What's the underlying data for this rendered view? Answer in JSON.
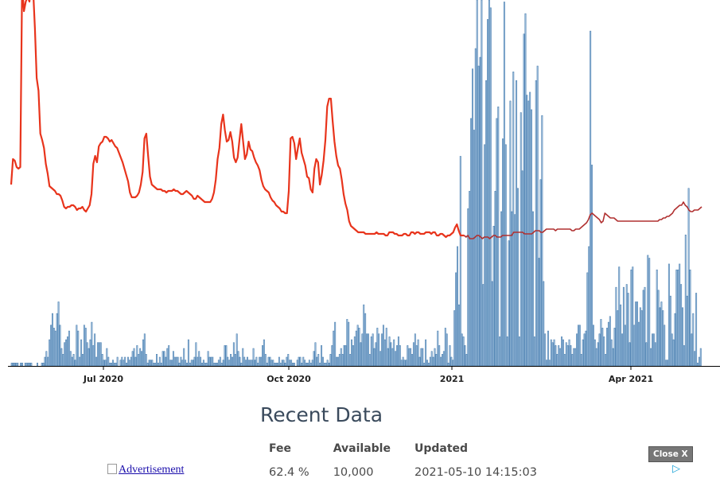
{
  "chart_data": {
    "type": "bar+line",
    "title": "",
    "xlabel": "",
    "ylabel": "",
    "x_tick_labels": [
      "Jul 2020",
      "Oct 2020",
      "2021",
      "Apr 2021"
    ],
    "grid": false,
    "legend": "none",
    "colors": {
      "bars": "#4a7fb0",
      "bar_fill": "#a9c6e2",
      "line": "#e8341c",
      "line_dark": "#b03030"
    },
    "series": [
      {
        "type": "bar",
        "values": [
          1,
          1,
          1,
          1,
          1,
          0,
          1,
          1,
          0,
          1,
          1,
          1,
          1,
          1,
          0,
          0,
          0,
          1,
          0,
          0,
          1,
          1,
          3,
          5,
          3,
          9,
          14,
          18,
          13,
          12,
          18,
          22,
          14,
          6,
          4,
          8,
          9,
          10,
          12,
          5,
          3,
          4,
          2,
          14,
          12,
          3,
          9,
          4,
          14,
          13,
          8,
          6,
          9,
          15,
          7,
          11,
          3,
          8,
          8,
          8,
          4,
          2,
          2,
          6,
          3,
          1,
          1,
          2,
          1,
          1,
          3,
          0,
          2,
          3,
          2,
          3,
          1,
          3,
          2,
          3,
          5,
          6,
          3,
          7,
          4,
          6,
          5,
          9,
          11,
          4,
          1,
          2,
          2,
          2,
          1,
          1,
          4,
          1,
          3,
          1,
          5,
          5,
          3,
          6,
          7,
          2,
          2,
          5,
          3,
          3,
          3,
          1,
          3,
          2,
          6,
          2,
          1,
          9,
          1,
          2,
          2,
          3,
          8,
          3,
          5,
          3,
          1,
          2,
          1,
          1,
          5,
          3,
          3,
          3,
          1,
          1,
          1,
          2,
          3,
          1,
          2,
          7,
          7,
          3,
          2,
          4,
          3,
          8,
          4,
          11,
          5,
          3,
          1,
          6,
          3,
          2,
          3,
          2,
          2,
          2,
          6,
          2,
          3,
          1,
          3,
          3,
          7,
          9,
          4,
          1,
          3,
          3,
          2,
          2,
          1,
          1,
          1,
          3,
          1,
          2,
          2,
          1,
          3,
          4,
          2,
          2,
          1,
          1,
          0,
          2,
          3,
          3,
          1,
          3,
          2,
          1,
          1,
          2,
          1,
          2,
          5,
          8,
          3,
          4,
          1,
          7,
          3,
          1,
          1,
          2,
          1,
          4,
          7,
          12,
          15,
          3,
          3,
          4,
          6,
          4,
          7,
          7,
          16,
          15,
          4,
          9,
          7,
          10,
          12,
          14,
          13,
          8,
          11,
          21,
          18,
          11,
          11,
          4,
          10,
          11,
          6,
          8,
          13,
          11,
          5,
          11,
          14,
          9,
          13,
          6,
          10,
          8,
          6,
          9,
          5,
          7,
          10,
          7,
          2,
          3,
          2,
          2,
          7,
          6,
          6,
          4,
          8,
          11,
          7,
          9,
          3,
          6,
          6,
          1,
          9,
          2,
          1,
          3,
          5,
          3,
          6,
          4,
          12,
          7,
          3,
          4,
          5,
          13,
          11,
          1,
          7,
          3,
          2,
          19,
          32,
          41,
          21,
          72,
          11,
          10,
          7,
          4,
          54,
          60,
          85,
          102,
          81,
          109,
          126,
          103,
          106,
          126,
          28,
          76,
          98,
          119,
          150,
          123,
          29,
          48,
          60,
          85,
          89,
          10,
          53,
          78,
          125,
          76,
          10,
          43,
          91,
          53,
          101,
          52,
          98,
          61,
          10,
          87,
          67,
          114,
          121,
          93,
          91,
          94,
          88,
          53,
          10,
          98,
          103,
          37,
          64,
          86,
          29,
          11,
          2,
          12,
          2,
          9,
          8,
          9,
          7,
          4,
          7,
          6,
          10,
          9,
          4,
          8,
          7,
          9,
          7,
          4,
          6,
          6,
          11,
          14,
          14,
          4,
          9,
          11,
          12,
          32,
          41,
          115,
          69,
          14,
          9,
          6,
          8,
          11,
          16,
          13,
          10,
          4,
          13,
          15,
          17,
          9,
          6,
          13,
          27,
          19,
          34,
          21,
          11,
          27,
          14,
          28,
          25,
          8,
          33,
          34,
          14,
          22,
          22,
          15,
          20,
          19,
          26,
          27,
          8,
          38,
          37,
          6,
          11,
          11,
          8,
          33,
          26,
          20,
          22,
          19,
          14,
          2,
          2,
          35,
          24,
          11,
          9,
          18,
          33,
          33,
          35,
          28,
          20,
          7,
          45,
          24,
          61,
          33,
          11,
          18,
          5,
          25,
          1,
          3,
          6
        ]
      },
      {
        "type": "line",
        "values": [
          114,
          130,
          129,
          125,
          124,
          125,
          243,
          223,
          229,
          232,
          229,
          242,
          237,
          212,
          181,
          173,
          146,
          142,
          137,
          127,
          121,
          113,
          112,
          111,
          110,
          108,
          108,
          107,
          104,
          100,
          99,
          100,
          100,
          101,
          101,
          100,
          98,
          99,
          99,
          100,
          98,
          97,
          99,
          101,
          108,
          127,
          132,
          128,
          138,
          140,
          141,
          144,
          144,
          143,
          141,
          142,
          140,
          138,
          137,
          134,
          131,
          128,
          124,
          120,
          116,
          109,
          106,
          106,
          106,
          107,
          109,
          114,
          122,
          143,
          146,
          132,
          119,
          114,
          113,
          112,
          111,
          111,
          111,
          110,
          110,
          109,
          110,
          110,
          110,
          111,
          110,
          110,
          109,
          108,
          108,
          109,
          110,
          109,
          108,
          107,
          105,
          105,
          107,
          106,
          105,
          104,
          103,
          103,
          103,
          103,
          105,
          109,
          117,
          130,
          137,
          152,
          158,
          148,
          141,
          142,
          147,
          141,
          131,
          128,
          131,
          142,
          152,
          141,
          130,
          133,
          141,
          136,
          135,
          131,
          128,
          126,
          123,
          117,
          113,
          111,
          110,
          109,
          106,
          104,
          103,
          101,
          100,
          99,
          97,
          97,
          96,
          96,
          110,
          143,
          144,
          140,
          130,
          137,
          143,
          134,
          130,
          126,
          119,
          118,
          111,
          109,
          124,
          130,
          128,
          114,
          120,
          129,
          142,
          163,
          168,
          168,
          154,
          141,
          132,
          126,
          124,
          117,
          108,
          102,
          98,
          91,
          88,
          87,
          86,
          85,
          84,
          84,
          84,
          84,
          83,
          83,
          83,
          83,
          83,
          83,
          84,
          83,
          83,
          83,
          83,
          82,
          82,
          84,
          84,
          84,
          83,
          83,
          82,
          82,
          82,
          83,
          83,
          82,
          82,
          84,
          84,
          83,
          84,
          84,
          83,
          83,
          83,
          84,
          84,
          84,
          83,
          84,
          84,
          82,
          82,
          83,
          83,
          82,
          81,
          82,
          82,
          83,
          84,
          87,
          89,
          85,
          82,
          82,
          82,
          81,
          82,
          80,
          80,
          80,
          81,
          82,
          82,
          81,
          80,
          81,
          81,
          81,
          80,
          81,
          82,
          82,
          81,
          81,
          81,
          82,
          82,
          82,
          82,
          82,
          82,
          84,
          84,
          84,
          84,
          84,
          84,
          83,
          83,
          83,
          83,
          83,
          84,
          85,
          85,
          85,
          84,
          84,
          85,
          86,
          86,
          86,
          86,
          86,
          85,
          86,
          86,
          86,
          86,
          86,
          86,
          86,
          86,
          85,
          85,
          86,
          86,
          86,
          87,
          88,
          89,
          90,
          92,
          95,
          96,
          95,
          94,
          93,
          92,
          90,
          91,
          96,
          95,
          94,
          93,
          93,
          93,
          92,
          91,
          91,
          91,
          91,
          91,
          91,
          91,
          91,
          91,
          91,
          91,
          91,
          91,
          91,
          91,
          91,
          91,
          91,
          91,
          91,
          91,
          91,
          91,
          92,
          92,
          93,
          93,
          94,
          94,
          95,
          96,
          98,
          99,
          100,
          101,
          101,
          103,
          101,
          100,
          98,
          97,
          97,
          98,
          98,
          98,
          99,
          100
        ]
      }
    ]
  },
  "recent_data": {
    "title": "Recent Data",
    "headers": [
      "Fee",
      "Available",
      "Updated"
    ],
    "row": [
      "62.4 %",
      "10,000",
      "2021-05-10 14:15:03"
    ]
  },
  "ad": {
    "link_text": "Advertisement",
    "close_label": "Close X",
    "adchoices_icon": "adchoices-icon"
  }
}
